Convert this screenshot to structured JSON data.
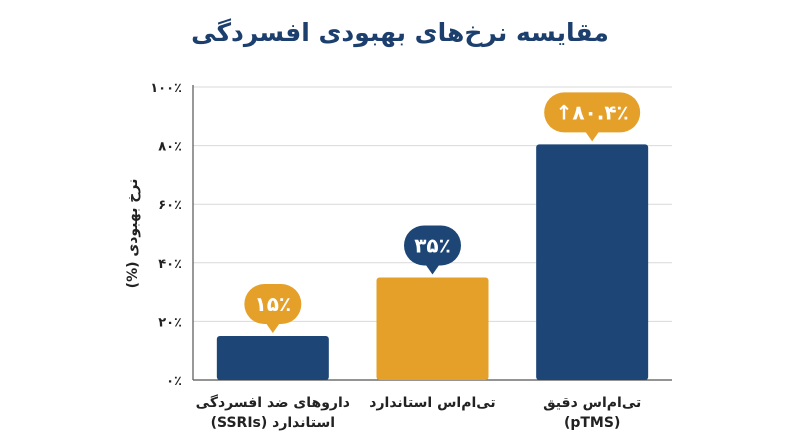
{
  "chart_data": {
    "type": "bar",
    "title": "مقایسه نرخ‌های بهبودی افسردگی",
    "ylabel": "نرخ بهبودی (%)",
    "xlabel": "",
    "ylim": [
      0,
      100
    ],
    "yticks": [
      {
        "value": 0,
        "label": "۰٪"
      },
      {
        "value": 20,
        "label": "۲۰٪"
      },
      {
        "value": 40,
        "label": "۴۰٪"
      },
      {
        "value": 60,
        "label": "۶۰٪"
      },
      {
        "value": 80,
        "label": "۸۰٪"
      },
      {
        "value": 100,
        "label": "۱۰۰٪"
      }
    ],
    "grid": true,
    "categories": [
      {
        "line1": "داروهای ضد افسردگی",
        "line2": "استاندارد (SSRIs)"
      },
      {
        "line1": "تی‌ام‌اس استاندارد",
        "line2": ""
      },
      {
        "line1": "تی‌ام‌اس دقیق",
        "line2": "(pTMS)"
      }
    ],
    "values": [
      15,
      35,
      80.4
    ],
    "data_labels": [
      "۱۵٪",
      "۳۵٪",
      "۸۰.۴٪↑"
    ],
    "colors": {
      "bars": [
        "#1d4677",
        "#e5a02a",
        "#1d4677"
      ],
      "badges": [
        "#e5a02a",
        "#1d4677",
        "#e5a02a"
      ],
      "title": "#1c3f6e",
      "grid": "#d9d9d9"
    }
  }
}
